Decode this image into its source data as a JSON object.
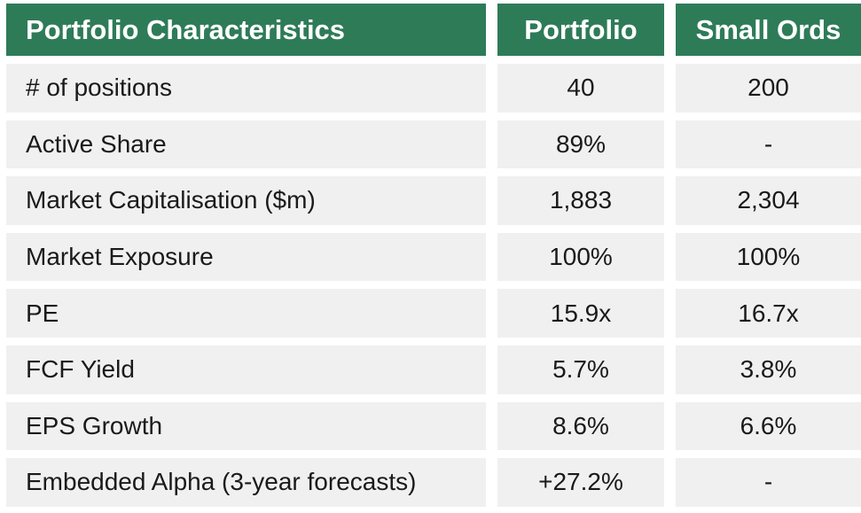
{
  "chart_data": {
    "type": "table",
    "title": "Portfolio Characteristics",
    "columns": [
      "Portfolio Characteristics",
      "Portfolio",
      "Small Ords"
    ],
    "rows": [
      [
        "# of positions",
        "40",
        "200"
      ],
      [
        "Active Share",
        "89%",
        "-"
      ],
      [
        "Market Capitalisation ($m)",
        "1,883",
        "2,304"
      ],
      [
        "Market Exposure",
        "100%",
        "100%"
      ],
      [
        "PE",
        "15.9x",
        "16.7x"
      ],
      [
        "FCF Yield",
        "5.7%",
        "3.8%"
      ],
      [
        "EPS Growth",
        "8.6%",
        "6.6%"
      ],
      [
        "Embedded Alpha (3-year forecasts)",
        "+27.2%",
        "-"
      ]
    ]
  },
  "table": {
    "header": {
      "label": "Portfolio Characteristics",
      "portfolio": "Portfolio",
      "small_ords": "Small Ords"
    },
    "rows": [
      {
        "label": "# of positions",
        "portfolio": "40",
        "small_ords": "200"
      },
      {
        "label": "Active Share",
        "portfolio": "89%",
        "small_ords": "-"
      },
      {
        "label": "Market Capitalisation ($m)",
        "portfolio": "1,883",
        "small_ords": "2,304"
      },
      {
        "label": "Market Exposure",
        "portfolio": "100%",
        "small_ords": "100%"
      },
      {
        "label": "PE",
        "portfolio": "15.9x",
        "small_ords": "16.7x"
      },
      {
        "label": "FCF Yield",
        "portfolio": "5.7%",
        "small_ords": "3.8%"
      },
      {
        "label": "EPS Growth",
        "portfolio": "8.6%",
        "small_ords": "6.6%"
      },
      {
        "label": "Embedded Alpha (3-year forecasts)",
        "portfolio": "+27.2%",
        "small_ords": "-"
      }
    ]
  },
  "colors": {
    "header_bg": "#2E7B58",
    "header_text": "#FFFFFF",
    "row_bg": "#F0F0F0",
    "body_text": "#1A1A1A"
  }
}
